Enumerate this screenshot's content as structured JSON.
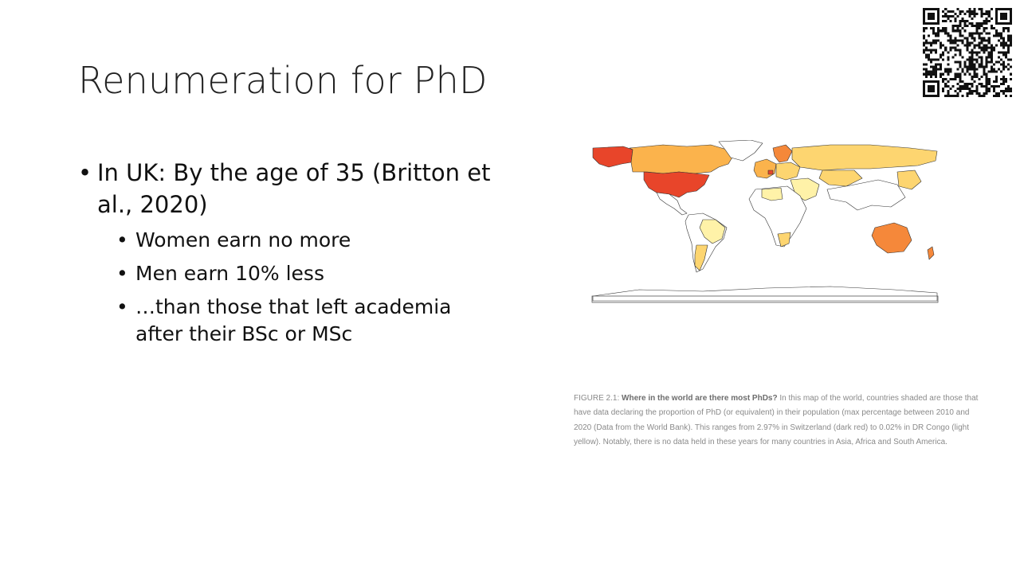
{
  "slide": {
    "title": "Renumeration for PhD",
    "bullets": {
      "main": "In UK: By the age of 35 (Britton et al., 2020)",
      "sub": [
        "Women earn no more",
        "Men earn 10% less",
        "…than those that left academia after their BSc or MSc"
      ]
    }
  },
  "figure": {
    "caption_label": "FIGURE 2.1: ",
    "caption_bold": "Where in the world are there most PhDs?",
    "caption_text": " In this map of the world, countries shaded are those that have data declaring the proportion of PhD (or equivalent) in their population (max percentage between 2010 and 2020 (Data from the World Bank). This ranges from 2.97% in Switzerland (dark red) to 0.02% in DR Congo (light yellow). Notably, there is no data held in these years for many countries in Asia, Africa and South America."
  },
  "colors": {
    "dark_red": "#e8452a",
    "orange": "#f5883a",
    "light_orange": "#fbb34c",
    "yellow": "#fdd570",
    "light_yellow": "#fff2a8",
    "no_data": "#ffffff"
  },
  "icons": {
    "qr": "qr-code-icon"
  }
}
